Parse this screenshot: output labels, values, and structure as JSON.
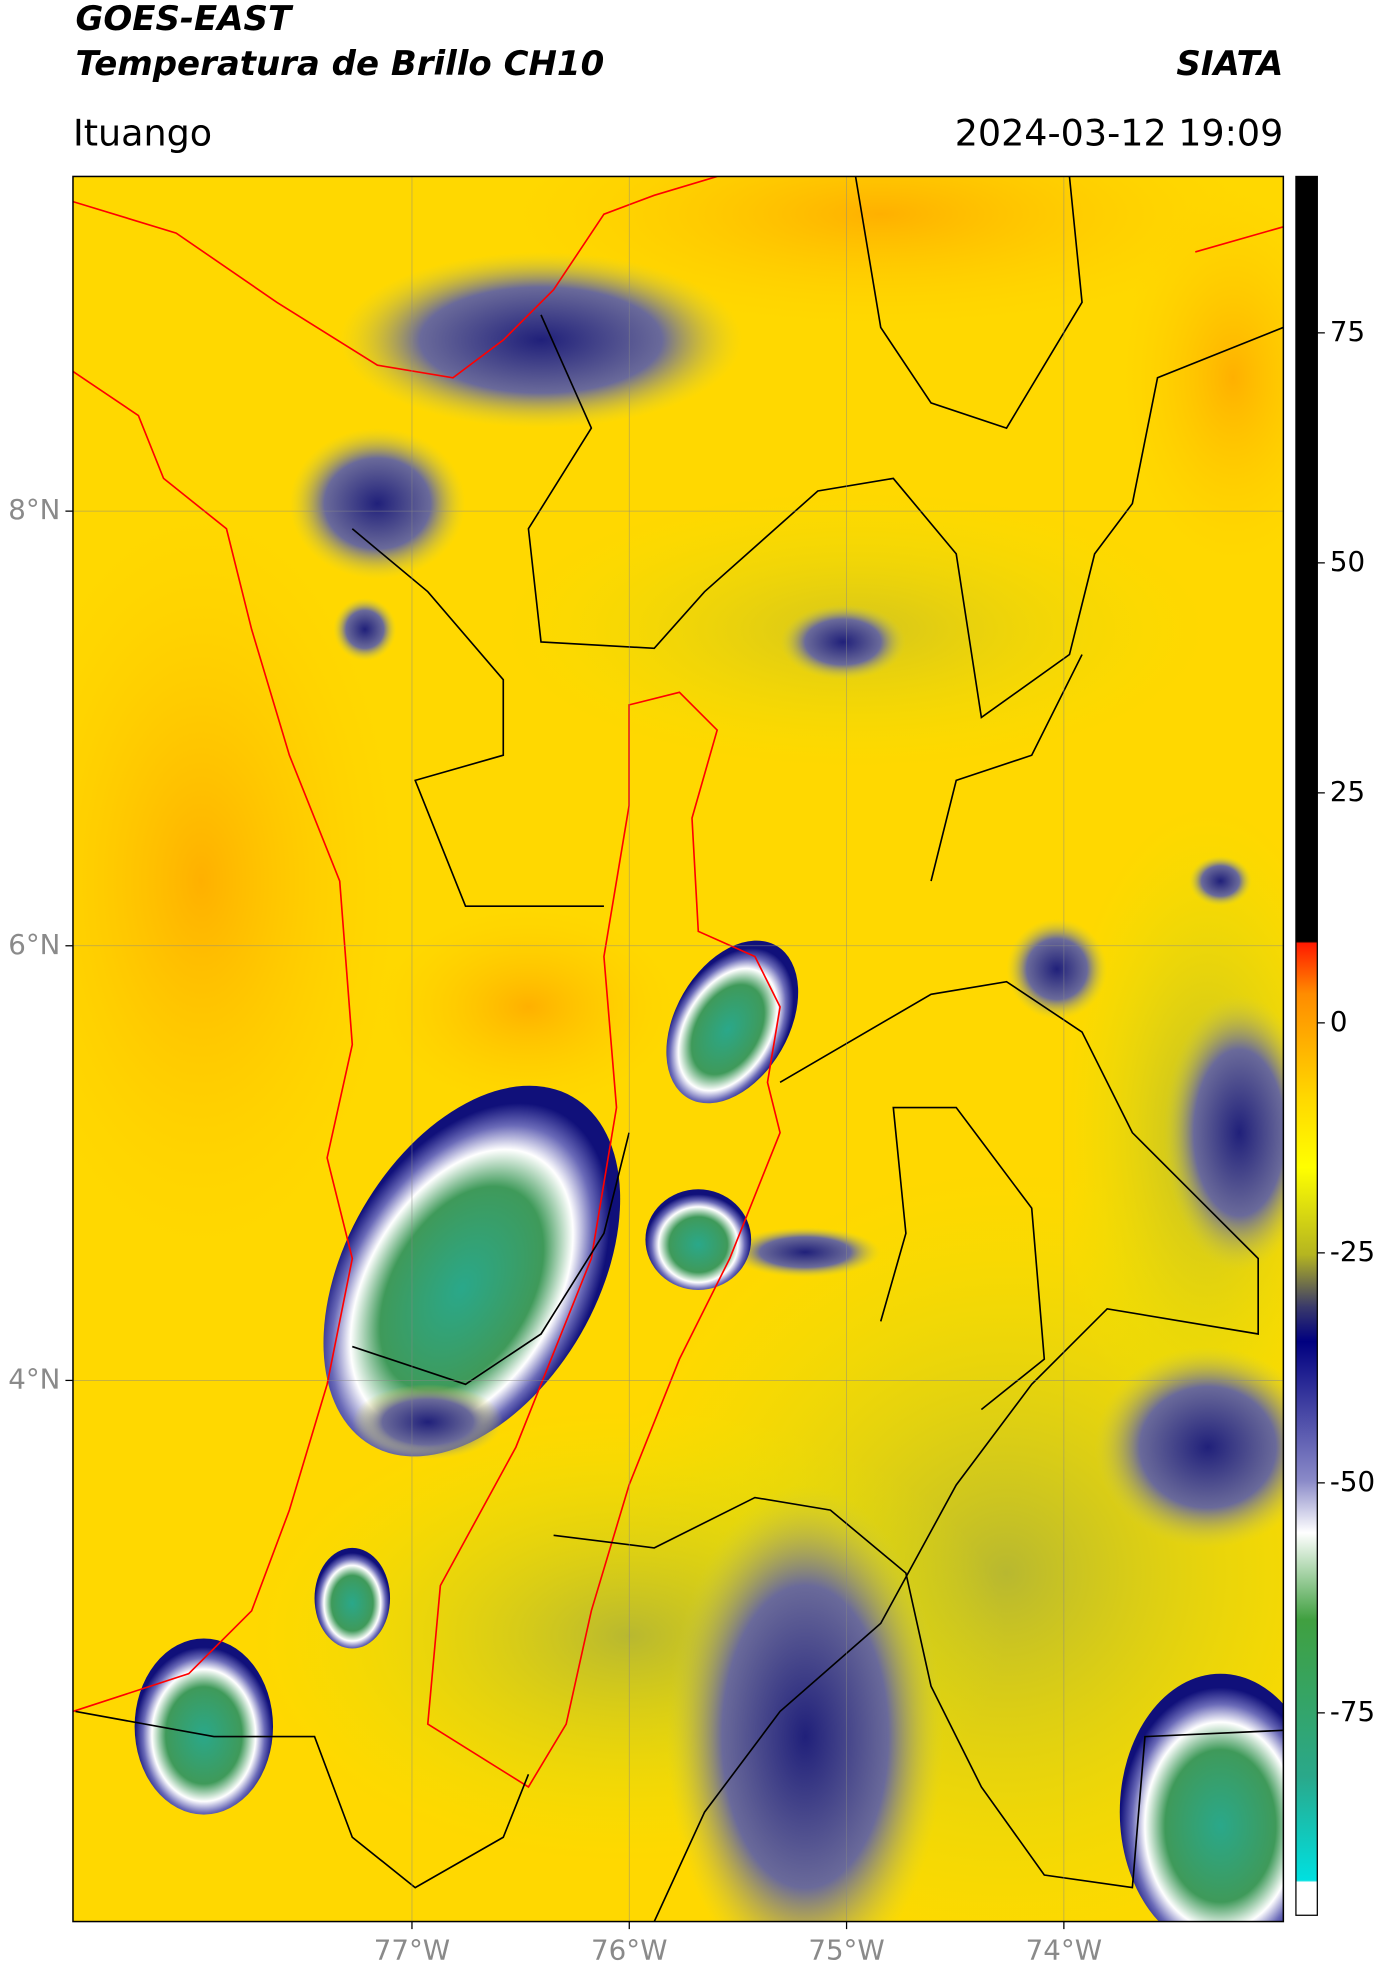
{
  "header": {
    "title_lines": [
      "GOES-EAST",
      "Temperatura de Brillo CH10"
    ],
    "brand": "SIATA",
    "location": "Ituango",
    "timestamp": "2024-03-12 19:09"
  },
  "map": {
    "lonlim": [
      -78.56,
      -72.99
    ],
    "latlim": [
      1.51,
      9.54
    ],
    "grid": true,
    "lonticks": [
      {
        "value": -77,
        "label": "77°W"
      },
      {
        "value": -76,
        "label": "76°W"
      },
      {
        "value": -75,
        "label": "75°W"
      },
      {
        "value": -74,
        "label": "74°W"
      }
    ],
    "latticks": [
      {
        "value": 8,
        "label": "8°N"
      },
      {
        "value": 6,
        "label": "6°N"
      },
      {
        "value": 4,
        "label": "4°N"
      }
    ]
  },
  "colorbar": {
    "clim": [
      -97,
      92
    ],
    "ticks": [
      75,
      50,
      25,
      0,
      -25,
      -50,
      -75
    ]
  }
}
